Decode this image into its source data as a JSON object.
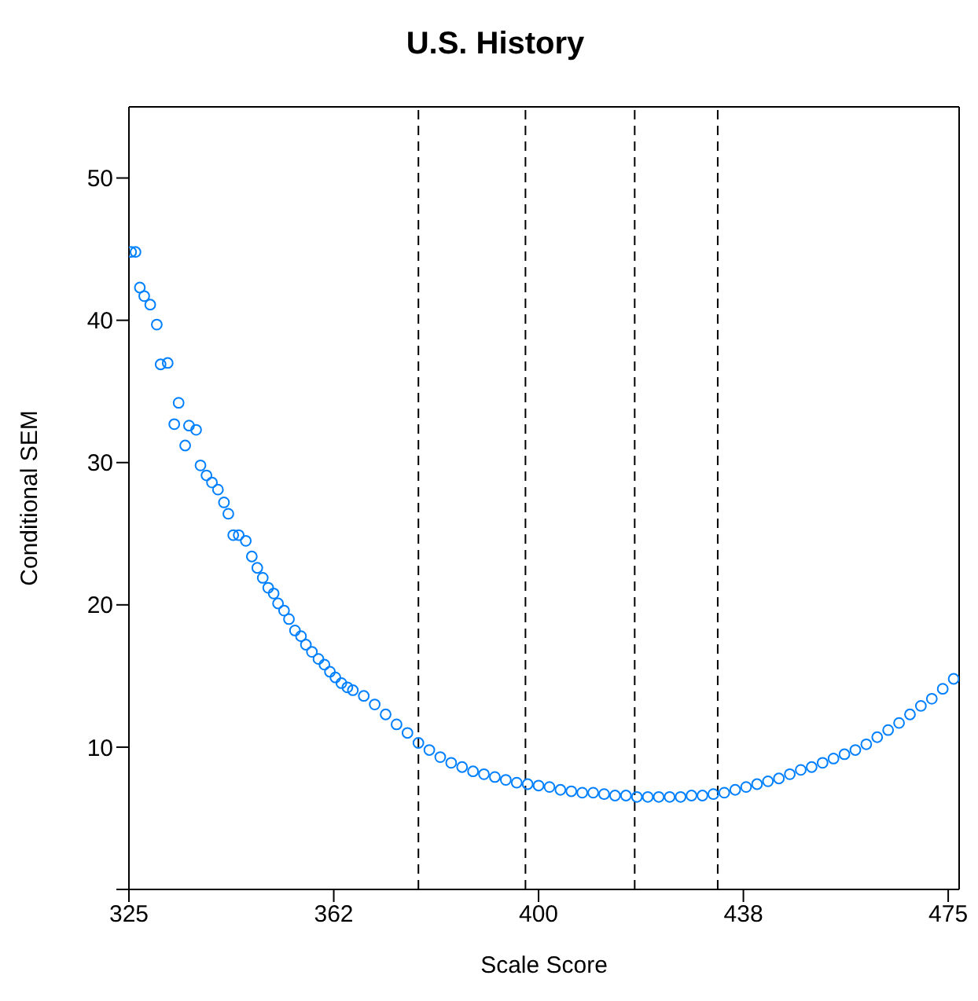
{
  "chart_data": {
    "type": "scatter",
    "title": "U.S. History",
    "xlabel": "Scale Score",
    "ylabel": "Conditional SEM",
    "xlim": [
      325,
      477
    ],
    "ylim": [
      0,
      55
    ],
    "xticks": [
      325,
      {
        "value": 362.5,
        "label": "362"
      },
      400,
      {
        "value": 437.5,
        "label": "438"
      },
      475
    ],
    "yticks": [
      {
        "value": 0,
        "label": null
      },
      10,
      20,
      30,
      40,
      50
    ],
    "legend": false,
    "marker": "circle",
    "ref_lines": [
      {
        "axis": "x",
        "value": 378,
        "line_style": "dashed",
        "color": "#000000"
      },
      {
        "axis": "x",
        "value": 397.6,
        "line_style": "dashed",
        "color": "#000000"
      },
      {
        "axis": "x",
        "value": 417.6,
        "line_style": "dashed",
        "color": "#000000"
      },
      {
        "axis": "x",
        "value": 432.8,
        "line_style": "dashed",
        "color": "#000000"
      }
    ],
    "series": [
      {
        "color": "#0080ff",
        "x": [
          325.4,
          326.2,
          327.0,
          327.8,
          328.9,
          330.1,
          330.8,
          332.1,
          333.3,
          334.1,
          335.3,
          336.0,
          337.3,
          338.1,
          339.2,
          340.2,
          341.3,
          342.4,
          343.2,
          344.1,
          345.1,
          346.4,
          347.5,
          348.5,
          349.5,
          350.5,
          351.5,
          352.3,
          353.4,
          354.3,
          355.4,
          356.5,
          357.4,
          358.5,
          359.7,
          360.8,
          361.8,
          362.8,
          363.9,
          365.0,
          366,
          368,
          370,
          372,
          374,
          376,
          378,
          380,
          382,
          384,
          386,
          388,
          390,
          392,
          394,
          396,
          398,
          400,
          402,
          404,
          406,
          408,
          410,
          412,
          414,
          416,
          418,
          420,
          422,
          424,
          426,
          428,
          430,
          432,
          434,
          436,
          438,
          440,
          442,
          444,
          446,
          448,
          450,
          452,
          454,
          456,
          458,
          460,
          462,
          464,
          466,
          468,
          470,
          472,
          474,
          476
        ],
        "values": [
          44.8,
          44.8,
          42.3,
          41.7,
          41.1,
          39.7,
          36.9,
          37.0,
          32.7,
          34.2,
          31.2,
          32.6,
          32.3,
          29.8,
          29.1,
          28.6,
          28.1,
          27.2,
          26.4,
          24.9,
          24.9,
          24.5,
          23.4,
          22.6,
          21.9,
          21.2,
          20.8,
          20.1,
          19.6,
          19.0,
          18.2,
          17.8,
          17.2,
          16.7,
          16.2,
          15.8,
          15.3,
          14.9,
          14.5,
          14.2,
          14.0,
          13.6,
          13.0,
          12.3,
          11.6,
          11.0,
          10.3,
          9.8,
          9.3,
          8.9,
          8.6,
          8.3,
          8.1,
          7.9,
          7.7,
          7.5,
          7.4,
          7.3,
          7.2,
          7.0,
          6.9,
          6.8,
          6.8,
          6.7,
          6.6,
          6.6,
          6.5,
          6.5,
          6.5,
          6.5,
          6.5,
          6.6,
          6.6,
          6.7,
          6.8,
          7.0,
          7.2,
          7.4,
          7.6,
          7.8,
          8.1,
          8.4,
          8.6,
          8.9,
          9.2,
          9.5,
          9.8,
          10.2,
          10.7,
          11.2,
          11.7,
          12.3,
          12.9,
          13.4,
          14.1,
          14.8
        ]
      }
    ]
  }
}
